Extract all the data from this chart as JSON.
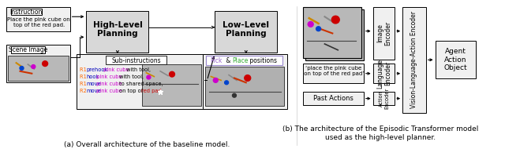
{
  "fig_width": 6.4,
  "fig_height": 1.9,
  "dpi": 100,
  "bg_color": "#ffffff",
  "caption_a": "(a) Overall architecture of the baseline model.",
  "caption_b": "(b) The architecture of the Episodic Transformer model\nused as the high-level planner.",
  "gray_fill": "#d8d8d8",
  "light_gray_fill": "#f0f0f0",
  "mid_gray_fill": "#c0c0c0",
  "instruction_label": "Instruction",
  "instruction_text": "Place the pink cube on\ntop of the red pad.",
  "scene_label": "Scene Image",
  "high_level_label": "High-Level\nPlanning",
  "low_level_label": "Low-Level\nPlanning",
  "sub_label": "Sub-instructions",
  "pick_color": "#9966cc",
  "place_color": "#33aa33",
  "image_encoder_label": "Image\nEncoder",
  "lang_encoder_label": "Language\nEncoder",
  "action_encoder_label": "Action\nEncoder",
  "vla_encoder_label": "Vision-Language-Action Encoder",
  "place_text": "‘place the pink cube\n on top of the red pad’",
  "past_actions_label": "Past Actions",
  "output_label": "Agent\nAction\nObject"
}
